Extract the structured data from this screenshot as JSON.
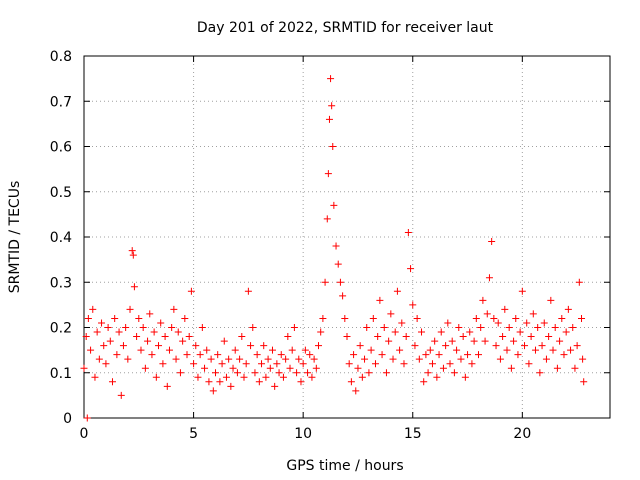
{
  "chart_data": {
    "type": "scatter",
    "title": "Day 201 of 2022, SRMTID for receiver laut",
    "xlabel": "GPS time / hours",
    "ylabel": "SRMTID / TECUs",
    "xlim": [
      0,
      24
    ],
    "ylim": [
      0,
      0.8
    ],
    "xticks": [
      0,
      5,
      10,
      15,
      20
    ],
    "yticks": [
      0,
      0.1,
      0.2,
      0.3,
      0.4,
      0.5,
      0.6,
      0.7,
      0.8
    ],
    "grid": true,
    "marker": "plus",
    "color": "#ff0000",
    "series": [
      {
        "name": "SRMTID",
        "points": [
          [
            0.0,
            0.11
          ],
          [
            0.1,
            0.18
          ],
          [
            0.15,
            0.0
          ],
          [
            0.2,
            0.22
          ],
          [
            0.3,
            0.15
          ],
          [
            0.4,
            0.24
          ],
          [
            0.5,
            0.09
          ],
          [
            0.6,
            0.19
          ],
          [
            0.7,
            0.13
          ],
          [
            0.8,
            0.21
          ],
          [
            0.9,
            0.16
          ],
          [
            1.0,
            0.12
          ],
          [
            1.1,
            0.2
          ],
          [
            1.2,
            0.17
          ],
          [
            1.3,
            0.08
          ],
          [
            1.4,
            0.22
          ],
          [
            1.5,
            0.14
          ],
          [
            1.6,
            0.19
          ],
          [
            1.7,
            0.05
          ],
          [
            1.8,
            0.16
          ],
          [
            1.9,
            0.2
          ],
          [
            2.0,
            0.13
          ],
          [
            2.1,
            0.24
          ],
          [
            2.2,
            0.37
          ],
          [
            2.25,
            0.36
          ],
          [
            2.3,
            0.29
          ],
          [
            2.4,
            0.18
          ],
          [
            2.5,
            0.22
          ],
          [
            2.6,
            0.15
          ],
          [
            2.7,
            0.2
          ],
          [
            2.8,
            0.11
          ],
          [
            2.9,
            0.17
          ],
          [
            3.0,
            0.23
          ],
          [
            3.1,
            0.14
          ],
          [
            3.2,
            0.19
          ],
          [
            3.3,
            0.09
          ],
          [
            3.4,
            0.16
          ],
          [
            3.5,
            0.21
          ],
          [
            3.6,
            0.12
          ],
          [
            3.7,
            0.18
          ],
          [
            3.8,
            0.07
          ],
          [
            3.9,
            0.15
          ],
          [
            4.0,
            0.2
          ],
          [
            4.1,
            0.24
          ],
          [
            4.2,
            0.13
          ],
          [
            4.3,
            0.19
          ],
          [
            4.4,
            0.1
          ],
          [
            4.5,
            0.17
          ],
          [
            4.6,
            0.22
          ],
          [
            4.7,
            0.14
          ],
          [
            4.8,
            0.18
          ],
          [
            4.9,
            0.28
          ],
          [
            5.0,
            0.12
          ],
          [
            5.1,
            0.16
          ],
          [
            5.2,
            0.09
          ],
          [
            5.3,
            0.14
          ],
          [
            5.4,
            0.2
          ],
          [
            5.5,
            0.11
          ],
          [
            5.6,
            0.15
          ],
          [
            5.7,
            0.08
          ],
          [
            5.8,
            0.13
          ],
          [
            5.9,
            0.06
          ],
          [
            6.0,
            0.1
          ],
          [
            6.1,
            0.14
          ],
          [
            6.2,
            0.08
          ],
          [
            6.3,
            0.12
          ],
          [
            6.4,
            0.17
          ],
          [
            6.5,
            0.09
          ],
          [
            6.6,
            0.13
          ],
          [
            6.7,
            0.07
          ],
          [
            6.8,
            0.11
          ],
          [
            6.9,
            0.15
          ],
          [
            7.0,
            0.1
          ],
          [
            7.1,
            0.13
          ],
          [
            7.2,
            0.18
          ],
          [
            7.3,
            0.09
          ],
          [
            7.4,
            0.12
          ],
          [
            7.5,
            0.28
          ],
          [
            7.6,
            0.16
          ],
          [
            7.7,
            0.2
          ],
          [
            7.8,
            0.1
          ],
          [
            7.9,
            0.14
          ],
          [
            8.0,
            0.08
          ],
          [
            8.1,
            0.12
          ],
          [
            8.2,
            0.16
          ],
          [
            8.3,
            0.09
          ],
          [
            8.4,
            0.13
          ],
          [
            8.5,
            0.11
          ],
          [
            8.6,
            0.15
          ],
          [
            8.7,
            0.07
          ],
          [
            8.8,
            0.12
          ],
          [
            8.9,
            0.1
          ],
          [
            9.0,
            0.14
          ],
          [
            9.1,
            0.09
          ],
          [
            9.2,
            0.13
          ],
          [
            9.3,
            0.18
          ],
          [
            9.4,
            0.11
          ],
          [
            9.5,
            0.15
          ],
          [
            9.6,
            0.2
          ],
          [
            9.7,
            0.1
          ],
          [
            9.8,
            0.13
          ],
          [
            9.9,
            0.08
          ],
          [
            10.0,
            0.12
          ],
          [
            10.1,
            0.15
          ],
          [
            10.2,
            0.1
          ],
          [
            10.3,
            0.14
          ],
          [
            10.4,
            0.09
          ],
          [
            10.5,
            0.13
          ],
          [
            10.6,
            0.11
          ],
          [
            10.7,
            0.16
          ],
          [
            10.8,
            0.19
          ],
          [
            10.9,
            0.22
          ],
          [
            11.0,
            0.3
          ],
          [
            11.1,
            0.44
          ],
          [
            11.15,
            0.54
          ],
          [
            11.2,
            0.66
          ],
          [
            11.25,
            0.75
          ],
          [
            11.3,
            0.69
          ],
          [
            11.35,
            0.6
          ],
          [
            11.4,
            0.47
          ],
          [
            11.5,
            0.38
          ],
          [
            11.6,
            0.34
          ],
          [
            11.7,
            0.3
          ],
          [
            11.8,
            0.27
          ],
          [
            11.9,
            0.22
          ],
          [
            12.0,
            0.18
          ],
          [
            12.1,
            0.12
          ],
          [
            12.2,
            0.08
          ],
          [
            12.3,
            0.14
          ],
          [
            12.4,
            0.06
          ],
          [
            12.5,
            0.11
          ],
          [
            12.6,
            0.16
          ],
          [
            12.7,
            0.09
          ],
          [
            12.8,
            0.13
          ],
          [
            12.9,
            0.2
          ],
          [
            13.0,
            0.1
          ],
          [
            13.1,
            0.15
          ],
          [
            13.2,
            0.22
          ],
          [
            13.3,
            0.12
          ],
          [
            13.4,
            0.18
          ],
          [
            13.5,
            0.26
          ],
          [
            13.6,
            0.14
          ],
          [
            13.7,
            0.2
          ],
          [
            13.8,
            0.1
          ],
          [
            13.9,
            0.17
          ],
          [
            14.0,
            0.23
          ],
          [
            14.1,
            0.13
          ],
          [
            14.2,
            0.19
          ],
          [
            14.3,
            0.28
          ],
          [
            14.4,
            0.15
          ],
          [
            14.5,
            0.21
          ],
          [
            14.6,
            0.12
          ],
          [
            14.7,
            0.18
          ],
          [
            14.8,
            0.41
          ],
          [
            14.9,
            0.33
          ],
          [
            15.0,
            0.25
          ],
          [
            15.1,
            0.16
          ],
          [
            15.2,
            0.22
          ],
          [
            15.3,
            0.13
          ],
          [
            15.4,
            0.19
          ],
          [
            15.5,
            0.08
          ],
          [
            15.6,
            0.14
          ],
          [
            15.7,
            0.1
          ],
          [
            15.8,
            0.15
          ],
          [
            15.9,
            0.12
          ],
          [
            16.0,
            0.17
          ],
          [
            16.1,
            0.09
          ],
          [
            16.2,
            0.14
          ],
          [
            16.3,
            0.19
          ],
          [
            16.4,
            0.11
          ],
          [
            16.5,
            0.16
          ],
          [
            16.6,
            0.21
          ],
          [
            16.7,
            0.12
          ],
          [
            16.8,
            0.17
          ],
          [
            16.9,
            0.1
          ],
          [
            17.0,
            0.15
          ],
          [
            17.1,
            0.2
          ],
          [
            17.2,
            0.13
          ],
          [
            17.3,
            0.18
          ],
          [
            17.4,
            0.09
          ],
          [
            17.5,
            0.14
          ],
          [
            17.6,
            0.19
          ],
          [
            17.7,
            0.12
          ],
          [
            17.8,
            0.17
          ],
          [
            17.9,
            0.22
          ],
          [
            18.0,
            0.14
          ],
          [
            18.1,
            0.2
          ],
          [
            18.2,
            0.26
          ],
          [
            18.3,
            0.17
          ],
          [
            18.4,
            0.23
          ],
          [
            18.5,
            0.31
          ],
          [
            18.6,
            0.39
          ],
          [
            18.7,
            0.22
          ],
          [
            18.8,
            0.16
          ],
          [
            18.9,
            0.21
          ],
          [
            19.0,
            0.13
          ],
          [
            19.1,
            0.18
          ],
          [
            19.2,
            0.24
          ],
          [
            19.3,
            0.15
          ],
          [
            19.4,
            0.2
          ],
          [
            19.5,
            0.11
          ],
          [
            19.6,
            0.17
          ],
          [
            19.7,
            0.22
          ],
          [
            19.8,
            0.14
          ],
          [
            19.9,
            0.19
          ],
          [
            20.0,
            0.28
          ],
          [
            20.1,
            0.16
          ],
          [
            20.2,
            0.21
          ],
          [
            20.3,
            0.12
          ],
          [
            20.4,
            0.18
          ],
          [
            20.5,
            0.23
          ],
          [
            20.6,
            0.15
          ],
          [
            20.7,
            0.2
          ],
          [
            20.8,
            0.1
          ],
          [
            20.9,
            0.16
          ],
          [
            21.0,
            0.21
          ],
          [
            21.1,
            0.13
          ],
          [
            21.2,
            0.18
          ],
          [
            21.3,
            0.26
          ],
          [
            21.4,
            0.15
          ],
          [
            21.5,
            0.2
          ],
          [
            21.6,
            0.11
          ],
          [
            21.7,
            0.17
          ],
          [
            21.8,
            0.22
          ],
          [
            21.9,
            0.14
          ],
          [
            22.0,
            0.19
          ],
          [
            22.1,
            0.24
          ],
          [
            22.2,
            0.15
          ],
          [
            22.3,
            0.2
          ],
          [
            22.4,
            0.11
          ],
          [
            22.5,
            0.16
          ],
          [
            22.6,
            0.3
          ],
          [
            22.7,
            0.22
          ],
          [
            22.75,
            0.13
          ],
          [
            22.8,
            0.08
          ]
        ]
      }
    ]
  }
}
